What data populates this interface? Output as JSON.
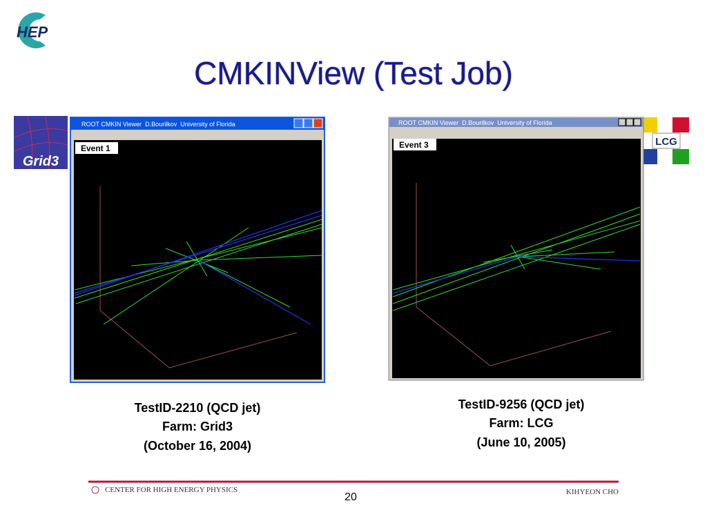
{
  "logo": "HEP",
  "title": "CMKINView (Test Job)",
  "panels": [
    {
      "badge": "Grid3",
      "window_title": "ROOT CMKIN Viewer  D.Bourilkov  University of Florida",
      "event": "Event 1",
      "caption": [
        "TestID-2210 (QCD jet)",
        "Farm:  Grid3",
        "(October 16, 2004)"
      ]
    },
    {
      "badge": "LCG",
      "window_title": "ROOT CMKIN Viewer  D.Bourilkov  University of Florida",
      "event": "Event 3",
      "caption": [
        "TestID-9256 (QCD jet)",
        "Farm: LCG",
        "(June 10, 2005)"
      ]
    }
  ],
  "footer": {
    "left": "CENTER FOR HIGH ENERGY PHYSICS",
    "page": "20",
    "right": "KIHYEON CHO"
  }
}
